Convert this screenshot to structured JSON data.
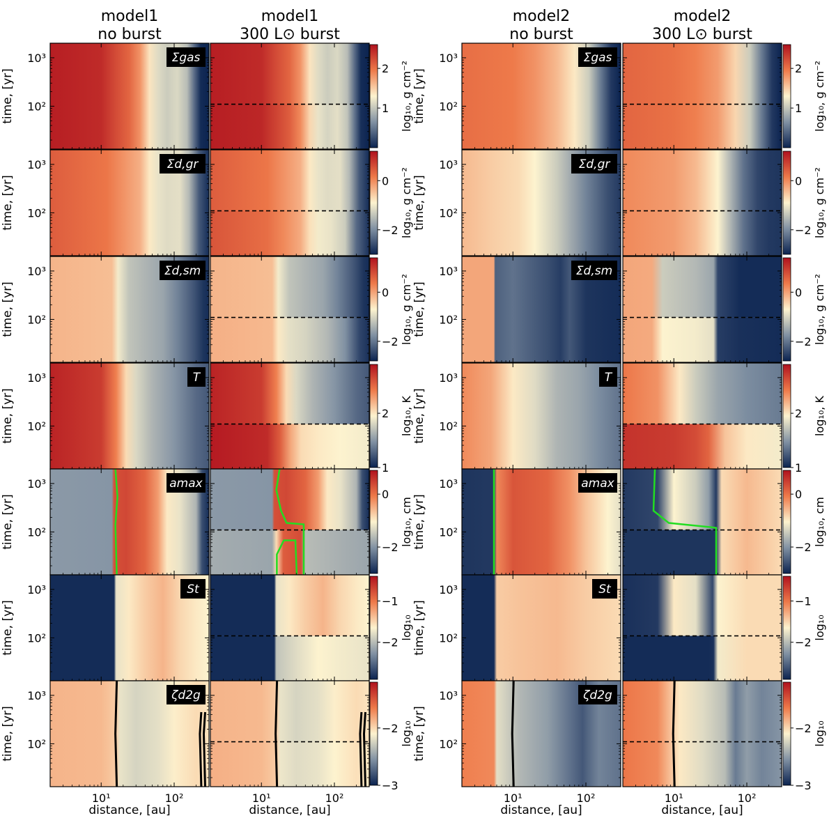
{
  "columns": [
    {
      "line1": "model1",
      "line2": "no burst"
    },
    {
      "line1": "model1",
      "line2": "300 L⊙ burst"
    },
    {
      "line1": "model2",
      "line2": "no burst"
    },
    {
      "line1": "model2",
      "line2": "300 L⊙ burst"
    }
  ],
  "y_axis_label": "time, [yr]",
  "x_axis_label": "distance, [au]",
  "chart_data": {
    "type": "heatmap",
    "x_scale": "log",
    "y_scale": "log",
    "xlim": [
      2,
      300
    ],
    "ylim": [
      13,
      2000
    ],
    "x_ticks": [
      {
        "value": 10,
        "label": "10¹"
      },
      {
        "value": 100,
        "label": "10²"
      }
    ],
    "y_ticks": [
      {
        "value": 100,
        "label": "10²"
      },
      {
        "value": 1000,
        "label": "10³"
      }
    ],
    "colormap": [
      "#0b2350",
      "#8191a3",
      "#fdf3cf",
      "#ee7a4a",
      "#b0121e"
    ],
    "burst_line_time_yr": 110,
    "rows": [
      {
        "label": "Σgas",
        "cbar_label": "log₁₀, g cm⁻²",
        "cbar_range": [
          0,
          2.6
        ],
        "cbar_ticks": [
          {
            "value": 1,
            "label": "1"
          },
          {
            "value": 2,
            "label": "2"
          }
        ]
      },
      {
        "label": "Σd,gr",
        "cbar_label": "log₁₀, g cm⁻²",
        "cbar_range": [
          -3,
          1.2
        ],
        "cbar_ticks": [
          {
            "value": -2,
            "label": "−2"
          },
          {
            "value": 0,
            "label": "0"
          }
        ]
      },
      {
        "label": "Σd,sm",
        "cbar_label": "log₁₀, g cm⁻²",
        "cbar_range": [
          -2.8,
          1.4
        ],
        "cbar_ticks": [
          {
            "value": -2,
            "label": "−2"
          },
          {
            "value": 0,
            "label": "0"
          }
        ]
      },
      {
        "label": "T",
        "cbar_label": "log₁₀, K",
        "cbar_range": [
          1,
          2.9
        ],
        "cbar_ticks": [
          {
            "value": 1,
            "label": "1"
          },
          {
            "value": 2,
            "label": "2"
          }
        ]
      },
      {
        "label": "amax",
        "cbar_label": "log₁₀, cm",
        "cbar_range": [
          -3,
          0.9
        ],
        "cbar_ticks": [
          {
            "value": -2,
            "label": "−2"
          },
          {
            "value": 0,
            "label": "0"
          }
        ]
      },
      {
        "label": "St",
        "cbar_label": "log₁₀",
        "cbar_range": [
          -2.9,
          -0.4
        ],
        "cbar_ticks": [
          {
            "value": -2,
            "label": "−2"
          },
          {
            "value": -1,
            "label": "−1"
          }
        ]
      },
      {
        "label": "ζd2g",
        "cbar_label": "log₁₀",
        "cbar_range": [
          -3,
          -1.2
        ],
        "cbar_ticks": [
          {
            "value": -3,
            "label": "−3"
          },
          {
            "value": -2,
            "label": "−2"
          }
        ]
      }
    ],
    "contours": {
      "amax_model1_no_burst_au": 16,
      "zeta_model1_au": [
        16,
        230,
        260
      ],
      "zeta_model2_au": 10
    }
  }
}
